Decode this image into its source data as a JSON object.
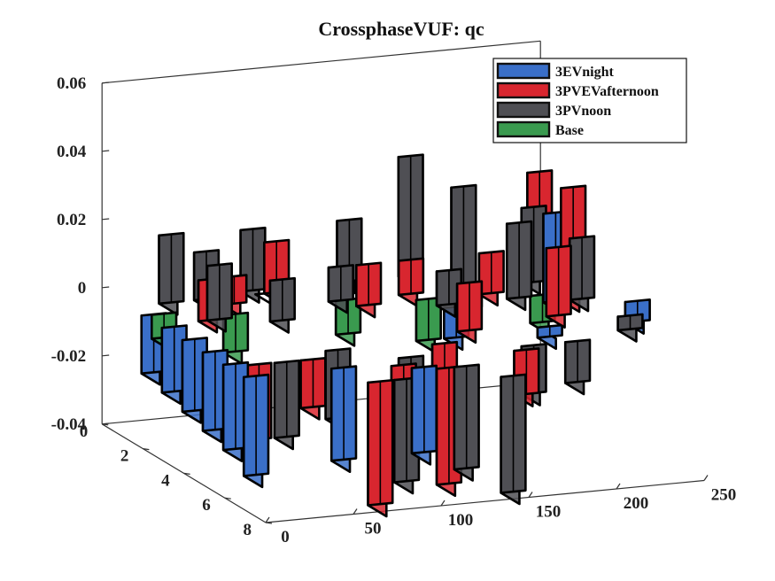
{
  "chart_data": {
    "type": "area",
    "title": "CrossphaseVUF: qc",
    "xlabel": "",
    "ylabel": "",
    "zlabel": "",
    "x_ticks": [
      "0",
      "50",
      "100",
      "150",
      "200",
      "250"
    ],
    "y_ticks": [
      "0",
      "2",
      "4",
      "6",
      "8"
    ],
    "z_ticks": [
      "-0.04",
      "-0.02",
      "0",
      "0.02",
      "0.04",
      "0.06"
    ],
    "xlim": [
      0,
      250
    ],
    "ylim": [
      0,
      8
    ],
    "zlim": [
      -0.04,
      0.06
    ],
    "grid": false,
    "legend_position": "top-right",
    "series": [
      {
        "name": "3EVnight",
        "color": "#3a6fc8",
        "points": [
          [
            5,
            1.5,
            -0.003,
            -0.02
          ],
          [
            5,
            2.5,
            -0.003,
            -0.022
          ],
          [
            5,
            3.5,
            -0.003,
            -0.024
          ],
          [
            5,
            4.5,
            -0.003,
            -0.026
          ],
          [
            5,
            5.5,
            -0.003,
            -0.028
          ],
          [
            5,
            6.5,
            -0.003,
            -0.032
          ],
          [
            55,
            6.5,
            -0.003,
            -0.03
          ],
          [
            95,
            7,
            -0.003,
            -0.028
          ],
          [
            160,
            3,
            -0.003,
            -0.012
          ],
          [
            190,
            5,
            -0.003,
            -0.006
          ],
          [
            205,
            4,
            0.0,
            0.026
          ],
          [
            225,
            2,
            0.0,
            0.012
          ],
          [
            240,
            5,
            -0.004,
            0.002
          ]
        ]
      },
      {
        "name": "3PVEVafternoon",
        "color": "#d8262f",
        "points": [
          [
            20,
            3,
            0.0,
            0.012
          ],
          [
            30,
            4.5,
            -0.008,
            -0.03
          ],
          [
            45,
            2,
            0.0,
            0.008
          ],
          [
            55,
            5,
            -0.006,
            -0.02
          ],
          [
            70,
            7,
            -0.006,
            -0.042
          ],
          [
            75,
            1.5,
            0.0,
            0.015
          ],
          [
            95,
            6,
            -0.006,
            -0.036
          ],
          [
            110,
            3,
            0.0,
            0.012
          ],
          [
            115,
            6.5,
            -0.006,
            -0.04
          ],
          [
            130,
            5,
            -0.005,
            -0.03
          ],
          [
            140,
            2.5,
            0.0,
            0.01
          ],
          [
            150,
            4.5,
            -0.004,
            0.01
          ],
          [
            165,
            6,
            -0.005,
            -0.018
          ],
          [
            180,
            3,
            0.0,
            0.012
          ],
          [
            195,
            5,
            0.0,
            0.02
          ],
          [
            215,
            4,
            0.0,
            0.033
          ],
          [
            225,
            1.5,
            0.0,
            0.028
          ]
        ]
      },
      {
        "name": "3PVnoon",
        "color": "#4f4f54",
        "points": [
          [
            15,
            1.5,
            0.0,
            0.02
          ],
          [
            25,
            3,
            0.0,
            0.016
          ],
          [
            35,
            1.5,
            0.0,
            0.014
          ],
          [
            40,
            5,
            -0.006,
            -0.028
          ],
          [
            55,
            3.5,
            0.0,
            0.012
          ],
          [
            65,
            1.2,
            0.0,
            0.018
          ],
          [
            75,
            4.5,
            -0.006,
            -0.026
          ],
          [
            85,
            7,
            -0.006,
            -0.036
          ],
          [
            100,
            2.5,
            0.0,
            0.01
          ],
          [
            105,
            5.5,
            -0.006,
            -0.03
          ],
          [
            120,
            1.2,
            0.0,
            0.018
          ],
          [
            125,
            6.5,
            -0.006,
            -0.036
          ],
          [
            140,
            7.5,
            -0.006,
            -0.04
          ],
          [
            150,
            3.5,
            0.0,
            0.01
          ],
          [
            155,
            1.2,
            0.0,
            0.035
          ],
          [
            170,
            2.5,
            0.0,
            0.03
          ],
          [
            175,
            5.5,
            -0.006,
            -0.02
          ],
          [
            190,
            3.5,
            0.0,
            0.022
          ],
          [
            200,
            5.5,
            -0.006,
            -0.018
          ],
          [
            210,
            2.5,
            0.0,
            0.022
          ],
          [
            220,
            4,
            0.0,
            0.018
          ],
          [
            230,
            5.5,
            -0.004,
            0.0
          ]
        ]
      },
      {
        "name": "Base",
        "color": "#3a9a4f",
        "points": [
          [
            5,
            2,
            -0.001,
            -0.008
          ],
          [
            40,
            2.5,
            -0.001,
            -0.012
          ],
          [
            70,
            1.5,
            0.0,
            0.0
          ],
          [
            110,
            2,
            -0.002,
            -0.012
          ],
          [
            150,
            2.5,
            -0.002,
            -0.014
          ],
          [
            185,
            1.5,
            -0.003,
            -0.01
          ],
          [
            215,
            2.5,
            -0.004,
            -0.012
          ]
        ]
      }
    ]
  }
}
